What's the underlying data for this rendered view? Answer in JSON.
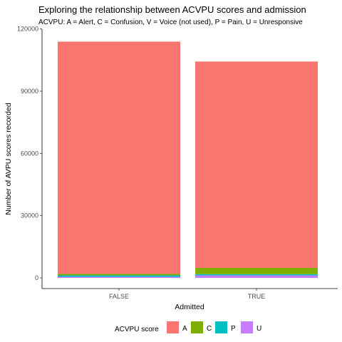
{
  "chart_data": {
    "type": "bar",
    "stacked": true,
    "title": "Exploring the relationship between ACVPU scores and admission",
    "subtitle": "ACVPU: A = Alert, C = Confusion, V = Voice (not used), P = Pain, U = Unresponsive",
    "xlabel": "Admitted",
    "ylabel": "Number of AVPU scores recorded",
    "categories": [
      "FALSE",
      "TRUE"
    ],
    "ylim": [
      0,
      120000
    ],
    "yticks": [
      0,
      30000,
      60000,
      90000,
      120000
    ],
    "grid": false,
    "legend_title": "ACVPU score",
    "legend_position": "bottom",
    "series": [
      {
        "name": "A",
        "color": "#F8766D",
        "values": [
          112000,
          99500
        ]
      },
      {
        "name": "C",
        "color": "#7CAE00",
        "values": [
          700,
          3000
        ]
      },
      {
        "name": "P",
        "color": "#00BFC4",
        "values": [
          700,
          600
        ]
      },
      {
        "name": "U",
        "color": "#C77CFF",
        "values": [
          500,
          1200
        ]
      }
    ]
  }
}
